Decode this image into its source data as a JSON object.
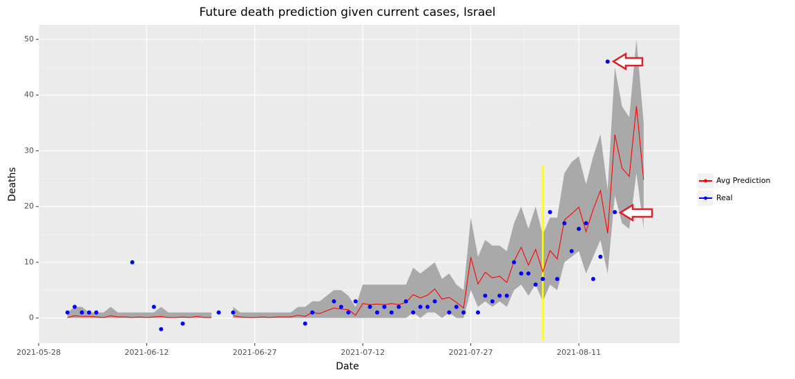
{
  "chart_data": {
    "type": "line",
    "title": "Future death prediction given current cases, Israel",
    "x_label": "Date",
    "y_label": "Deaths",
    "xlim": [
      "2021-05-28",
      "2021-08-25"
    ],
    "xticks": [
      "2021-05-28",
      "2021-06-12",
      "2021-06-27",
      "2021-07-12",
      "2021-07-27",
      "2021-08-11"
    ],
    "ylim": [
      -4.5,
      52.6
    ],
    "yticks": [
      0,
      10,
      20,
      30,
      40,
      50
    ],
    "grid": true,
    "legend": "right",
    "x": [
      "2021-06-01",
      "2021-06-02",
      "2021-06-03",
      "2021-06-04",
      "2021-06-05",
      "2021-06-06",
      "2021-06-07",
      "2021-06-08",
      "2021-06-09",
      "2021-06-10",
      "2021-06-11",
      "2021-06-12",
      "2021-06-13",
      "2021-06-14",
      "2021-06-15",
      "2021-06-16",
      "2021-06-17",
      "2021-06-18",
      "2021-06-19",
      "2021-06-20",
      "2021-06-21",
      "2021-06-22",
      "2021-06-23",
      "2021-06-24",
      "2021-06-25",
      "2021-06-26",
      "2021-06-27",
      "2021-06-28",
      "2021-06-29",
      "2021-06-30",
      "2021-07-01",
      "2021-07-02",
      "2021-07-03",
      "2021-07-04",
      "2021-07-05",
      "2021-07-06",
      "2021-07-07",
      "2021-07-08",
      "2021-07-09",
      "2021-07-10",
      "2021-07-11",
      "2021-07-12",
      "2021-07-13",
      "2021-07-14",
      "2021-07-15",
      "2021-07-16",
      "2021-07-17",
      "2021-07-18",
      "2021-07-19",
      "2021-07-20",
      "2021-07-21",
      "2021-07-22",
      "2021-07-23",
      "2021-07-24",
      "2021-07-25",
      "2021-07-26",
      "2021-07-27",
      "2021-07-28",
      "2021-07-29",
      "2021-07-30",
      "2021-07-31",
      "2021-08-01",
      "2021-08-02",
      "2021-08-03",
      "2021-08-04",
      "2021-08-05",
      "2021-08-06",
      "2021-08-07",
      "2021-08-08",
      "2021-08-09",
      "2021-08-10",
      "2021-08-11",
      "2021-08-12",
      "2021-08-13",
      "2021-08-14",
      "2021-08-15",
      "2021-08-16",
      "2021-08-17",
      "2021-08-18",
      "2021-08-19",
      "2021-08-20"
    ],
    "band": {
      "color": "#a9a9a9",
      "lower": [
        0,
        0,
        0,
        0,
        0,
        0,
        0,
        0,
        0,
        0,
        0,
        0,
        0,
        0,
        0,
        0,
        0,
        0,
        0,
        0,
        0,
        null,
        null,
        0,
        0,
        0,
        0,
        0,
        0,
        0,
        0,
        0,
        0,
        0,
        0,
        0,
        0,
        0,
        0,
        0,
        0,
        0,
        0,
        0,
        0,
        0,
        0,
        0,
        1,
        0,
        1,
        1,
        0,
        1,
        0,
        0,
        5,
        2,
        3,
        2,
        3,
        2,
        5,
        6,
        4,
        6,
        3,
        6,
        5,
        10,
        11,
        12,
        8,
        11,
        14,
        8,
        22,
        17,
        16,
        26,
        16
      ],
      "upper": [
        1,
        2,
        2,
        1,
        1,
        1,
        2,
        1,
        1,
        1,
        1,
        1,
        1,
        2,
        1,
        1,
        1,
        1,
        1,
        1,
        1,
        null,
        null,
        2,
        1,
        1,
        1,
        1,
        1,
        1,
        1,
        1,
        2,
        2,
        3,
        3,
        4,
        5,
        5,
        4,
        2,
        6,
        6,
        6,
        6,
        6,
        6,
        6,
        9,
        8,
        9,
        10,
        7,
        8,
        6,
        5,
        18,
        11,
        14,
        13,
        13,
        12,
        17,
        20,
        16,
        20,
        15,
        18,
        18,
        26,
        28,
        29,
        24,
        29,
        33,
        23,
        45,
        38,
        36,
        50,
        35
      ]
    },
    "series": [
      {
        "name": "Avg Prediction",
        "color": "#ff0000",
        "values": [
          0.1,
          0.4,
          0.3,
          0.3,
          0.2,
          0.1,
          0.4,
          0.2,
          0.2,
          0.1,
          0.2,
          0.1,
          0.2,
          0.3,
          0.1,
          0.1,
          0.2,
          0.1,
          0.3,
          0.1,
          0.1,
          null,
          null,
          0.4,
          0.2,
          0.1,
          0.1,
          0.2,
          0.1,
          0.2,
          0.2,
          0.2,
          0.5,
          0.3,
          1.0,
          0.8,
          1.3,
          1.8,
          1.6,
          1.5,
          0.5,
          2.6,
          2.4,
          2.5,
          2.4,
          2.6,
          2.4,
          2.8,
          4.2,
          3.6,
          4.1,
          5.2,
          3.4,
          3.7,
          2.8,
          1.8,
          10.9,
          6.1,
          8.2,
          7.2,
          7.5,
          6.4,
          10.2,
          12.7,
          9.5,
          12.3,
          8.3,
          12.1,
          10.6,
          17.6,
          18.7,
          19.9,
          15.5,
          19.5,
          22.9,
          15.2,
          32.9,
          26.9,
          25.4,
          38,
          24.8
        ]
      },
      {
        "name": "Real",
        "color": "#0000ff",
        "x": [
          "2021-06-01",
          "2021-06-02",
          "2021-06-03",
          "2021-06-04",
          "2021-06-05",
          "2021-06-10",
          "2021-06-13",
          "2021-06-14",
          "2021-06-17",
          "2021-06-22",
          "2021-06-24",
          "2021-07-04",
          "2021-07-05",
          "2021-07-08",
          "2021-07-09",
          "2021-07-10",
          "2021-07-11",
          "2021-07-13",
          "2021-07-14",
          "2021-07-15",
          "2021-07-16",
          "2021-07-17",
          "2021-07-18",
          "2021-07-19",
          "2021-07-20",
          "2021-07-21",
          "2021-07-22",
          "2021-07-24",
          "2021-07-25",
          "2021-07-26",
          "2021-07-28",
          "2021-07-29",
          "2021-07-30",
          "2021-07-31",
          "2021-08-01",
          "2021-08-02",
          "2021-08-03",
          "2021-08-04",
          "2021-08-05",
          "2021-08-06",
          "2021-08-07",
          "2021-08-08",
          "2021-08-09",
          "2021-08-10",
          "2021-08-11",
          "2021-08-12",
          "2021-08-13",
          "2021-08-14",
          "2021-08-15",
          "2021-08-16"
        ],
        "values": [
          1,
          2,
          1,
          1,
          1,
          10,
          2,
          -2,
          -1,
          1,
          1,
          -1,
          1,
          3,
          2,
          1,
          3,
          2,
          1,
          2,
          1,
          2,
          3,
          1,
          2,
          2,
          3,
          1,
          2,
          1,
          1,
          4,
          3,
          4,
          4,
          10,
          8,
          8,
          6,
          7,
          19,
          7,
          17,
          12,
          16,
          17,
          7,
          11,
          46,
          19
        ]
      }
    ],
    "vline": {
      "x": "2021-08-06",
      "ymin": -4,
      "ymax": 27.3,
      "color": "#ffff00"
    }
  }
}
